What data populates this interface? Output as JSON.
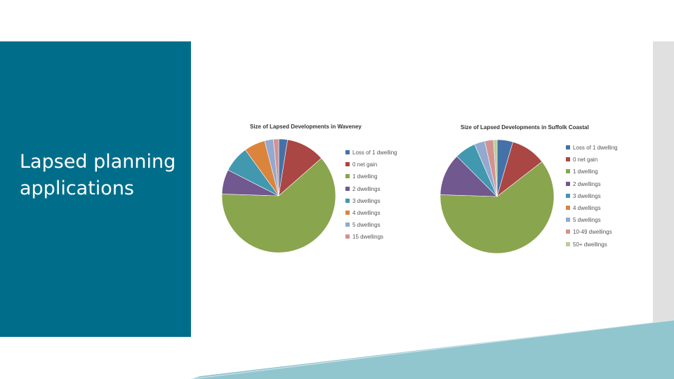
{
  "slide": {
    "title": "Lapsed planning applications",
    "panel_color": "#006e8a",
    "accent_color": "#92c6cf"
  },
  "chart_data": [
    {
      "type": "pie",
      "title": "Size of Lapsed Developments in Waveney",
      "legend_position": "right",
      "slices": [
        {
          "label": "Loss of 1 dwelling",
          "value": 2.5,
          "color": "#4472a8"
        },
        {
          "label": "0 net gain",
          "value": 11,
          "color": "#aa4643"
        },
        {
          "label": "1 dwelling",
          "value": 62,
          "color": "#89a54e"
        },
        {
          "label": "2 dwellings",
          "value": 7,
          "color": "#71588f"
        },
        {
          "label": "3 dwellings",
          "value": 7.5,
          "color": "#4198af"
        },
        {
          "label": "4 dwellings",
          "value": 6,
          "color": "#db843d"
        },
        {
          "label": "5 dwellings",
          "value": 2.5,
          "color": "#93a9cf"
        },
        {
          "label": "15 dwellings",
          "value": 1.5,
          "color": "#d19392"
        }
      ]
    },
    {
      "type": "pie",
      "title": "Size of Lapsed Developments in Suffolk Coastal",
      "legend_position": "right",
      "slices": [
        {
          "label": "Loss of 1 dwelling",
          "value": 4.5,
          "color": "#4472a8"
        },
        {
          "label": "0 net gain",
          "value": 10,
          "color": "#aa4643"
        },
        {
          "label": "1 dwelling",
          "value": 61,
          "color": "#89a54e"
        },
        {
          "label": "2 dwellings",
          "value": 12,
          "color": "#71588f"
        },
        {
          "label": "3 dwellings",
          "value": 6,
          "color": "#4198af"
        },
        {
          "label": "4 dwellings",
          "value": 0,
          "color": "#db843d"
        },
        {
          "label": "5 dwellings",
          "value": 3,
          "color": "#93a9cf"
        },
        {
          "label": "10-49 dwellings",
          "value": 2.5,
          "color": "#d19392"
        },
        {
          "label": "50+ dwellings",
          "value": 1,
          "color": "#b9cd96"
        }
      ]
    }
  ]
}
